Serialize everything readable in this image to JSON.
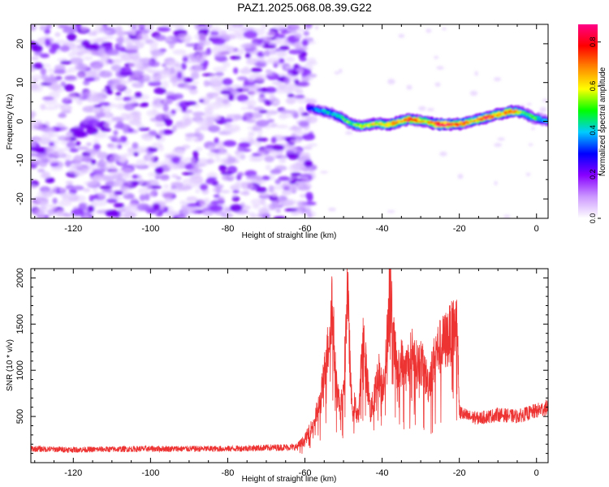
{
  "title": "PAZ1.2025.068.08.39.G22",
  "chart_data": [
    {
      "type": "heatmap",
      "xlabel": "Height of straight line (km)",
      "ylabel": "Frequency (Hz)",
      "xlim": [
        -131,
        3
      ],
      "ylim": [
        -25,
        25
      ],
      "xticks": [
        -120,
        -100,
        -80,
        -60,
        -40,
        -20,
        0
      ],
      "yticks": [
        -20,
        -10,
        0,
        10,
        20
      ],
      "xtick_labels": [
        "-120",
        "-100",
        "-80",
        "-60",
        "-40",
        "-20",
        "0"
      ],
      "ytick_labels": [
        "-20",
        "-10",
        "0",
        "10",
        "20"
      ],
      "colorbar": {
        "label": "Normalized spectral amplitude",
        "range": [
          0,
          0.88
        ],
        "ticks": [
          0.0,
          0.2,
          0.4,
          0.6,
          0.8
        ],
        "tick_labels": [
          "0.0",
          "0.2",
          "0.4",
          "0.6",
          "0.8"
        ],
        "colormap": [
          "#ffffff",
          "#cc99ff",
          "#8800ff",
          "#0000ff",
          "#00ccff",
          "#00ff00",
          "#ffff00",
          "#ff8800",
          "#ff0000",
          "#ff0088"
        ]
      },
      "noise_region_x": [
        -131,
        -58
      ],
      "ridge": {
        "x": [
          -59,
          -57,
          -55,
          -53,
          -51,
          -49,
          -47,
          -45,
          -43,
          -41,
          -39,
          -37,
          -35,
          -33,
          -31,
          -29,
          -27,
          -25,
          -23,
          -21,
          -19,
          -17,
          -15,
          -13,
          -11,
          -9,
          -7,
          -5,
          -3,
          -1,
          1,
          3
        ],
        "y": [
          3.5,
          3.0,
          2.5,
          2.0,
          1.2,
          0.0,
          -1.0,
          -1.2,
          -0.8,
          -0.5,
          -1.0,
          -0.5,
          0.0,
          0.5,
          0.3,
          0.0,
          -0.5,
          -0.8,
          -0.8,
          -0.8,
          -0.5,
          0.0,
          0.5,
          1.0,
          1.5,
          2.0,
          2.5,
          2.5,
          2.0,
          1.0,
          0.5,
          0.0
        ],
        "amplitude": [
          0.3,
          0.35,
          0.4,
          0.4,
          0.45,
          0.5,
          0.5,
          0.55,
          0.6,
          0.55,
          0.65,
          0.7,
          0.65,
          0.75,
          0.7,
          0.6,
          0.7,
          0.85,
          0.8,
          0.7,
          0.75,
          0.6,
          0.7,
          0.8,
          0.7,
          0.65,
          0.75,
          0.6,
          0.5,
          0.5,
          0.4,
          0.35
        ]
      }
    },
    {
      "type": "line",
      "xlabel": "Height of straight line (km)",
      "ylabel": "SNR (10 * v/v)",
      "xlim": [
        -131,
        3
      ],
      "ylim": [
        0,
        2100
      ],
      "xticks": [
        -120,
        -100,
        -80,
        -60,
        -40,
        -20,
        0
      ],
      "yticks": [
        500,
        1000,
        1500,
        2000
      ],
      "xtick_labels": [
        "-120",
        "-100",
        "-80",
        "-60",
        "-40",
        "-20",
        "0"
      ],
      "ytick_labels": [
        "500",
        "1000",
        "1500",
        "2000"
      ],
      "color": "#ee3333",
      "series_envelope": {
        "x": [
          -131,
          -120,
          -100,
          -80,
          -62,
          -60,
          -58,
          -56,
          -54,
          -53,
          -52,
          -51,
          -50,
          -49,
          -48,
          -46,
          -45,
          -44,
          -43,
          -42,
          -41,
          -40,
          -39,
          -38,
          -37,
          -36,
          -35,
          -34,
          -32,
          -31,
          -30,
          -28,
          -26,
          -24,
          -22,
          -20.5,
          -20,
          -18,
          -15,
          -10,
          -5,
          0,
          3
        ],
        "y": [
          150,
          140,
          150,
          150,
          170,
          250,
          400,
          650,
          1250,
          1750,
          900,
          600,
          700,
          1900,
          700,
          500,
          1450,
          950,
          550,
          700,
          1000,
          800,
          1100,
          1950,
          1300,
          950,
          1100,
          1000,
          1200,
          1050,
          1100,
          850,
          1200,
          1300,
          1400,
          1500,
          550,
          500,
          480,
          520,
          500,
          560,
          600
        ]
      }
    }
  ]
}
